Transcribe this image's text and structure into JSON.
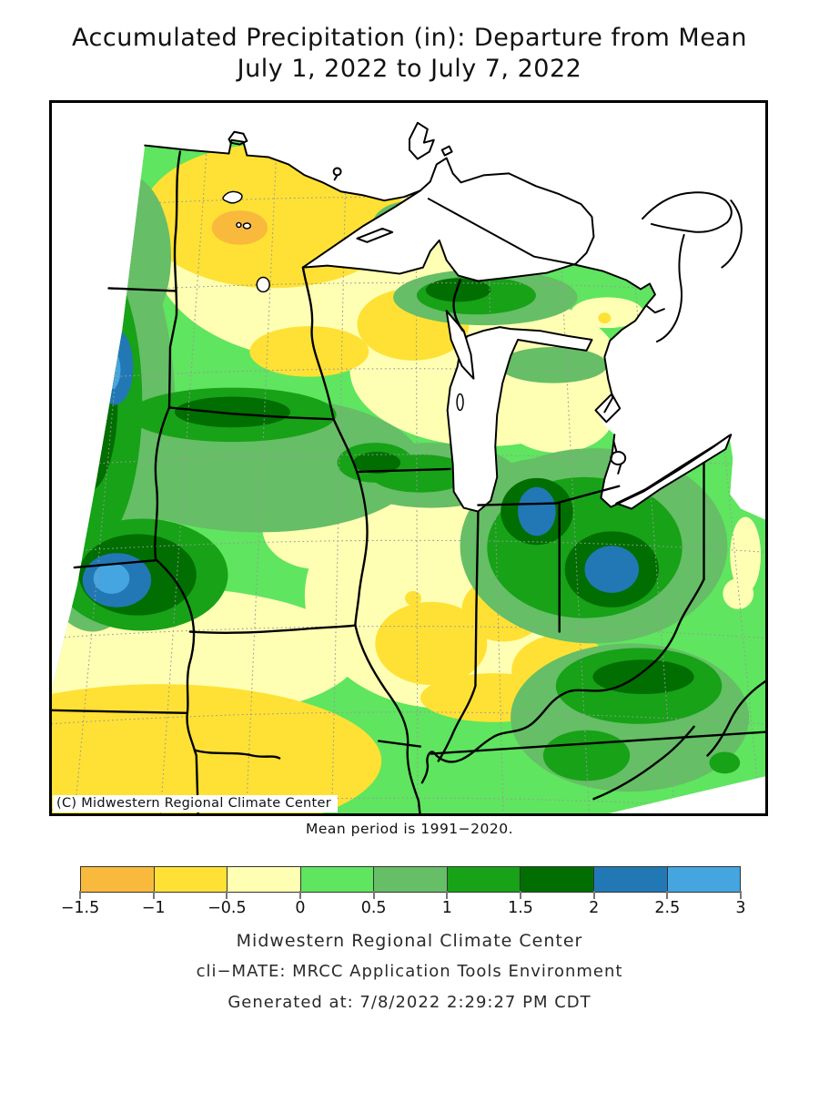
{
  "title": {
    "line1": "Accumulated Precipitation (in): Departure from Mean",
    "line2": "July 1, 2022 to July 7, 2022"
  },
  "map": {
    "copyright": "(C) Midwestern Regional Climate Center",
    "note": "Mean period is 1991−2020."
  },
  "legend": {
    "tick_labels": [
      "−1.5",
      "−1",
      "−0.5",
      "0",
      "0.5",
      "1",
      "1.5",
      "2",
      "2.5",
      "3"
    ],
    "colors": [
      "#F9B93D",
      "#FFE135",
      "#FFFFB4",
      "#5FE55F",
      "#66BE66",
      "#17A217",
      "#006E00",
      "#2278B5",
      "#45A5E0"
    ]
  },
  "footer": {
    "line1": "Midwestern Regional Climate Center",
    "line2": "cli−MATE: MRCC Application Tools Environment",
    "line3": "Generated at: 7/8/2022 2:29:27 PM CDT"
  },
  "chart_data": {
    "type": "heatmap",
    "subtype": "filled-contour-map",
    "title": "Accumulated Precipitation (in): Departure from Mean",
    "period": "July 1, 2022 to July 7, 2022",
    "mean_period_note": "Mean period is 1991−2020.",
    "legend_bins_inches": [
      -1.5,
      -1,
      -0.5,
      0,
      0.5,
      1,
      1.5,
      2,
      2.5,
      3
    ],
    "legend_bin_colors": [
      "#F9B93D",
      "#FFE135",
      "#FFFFB4",
      "#5FE55F",
      "#66BE66",
      "#17A217",
      "#006E00",
      "#2278B5",
      "#45A5E0"
    ],
    "legend_position": "bottom"
  }
}
